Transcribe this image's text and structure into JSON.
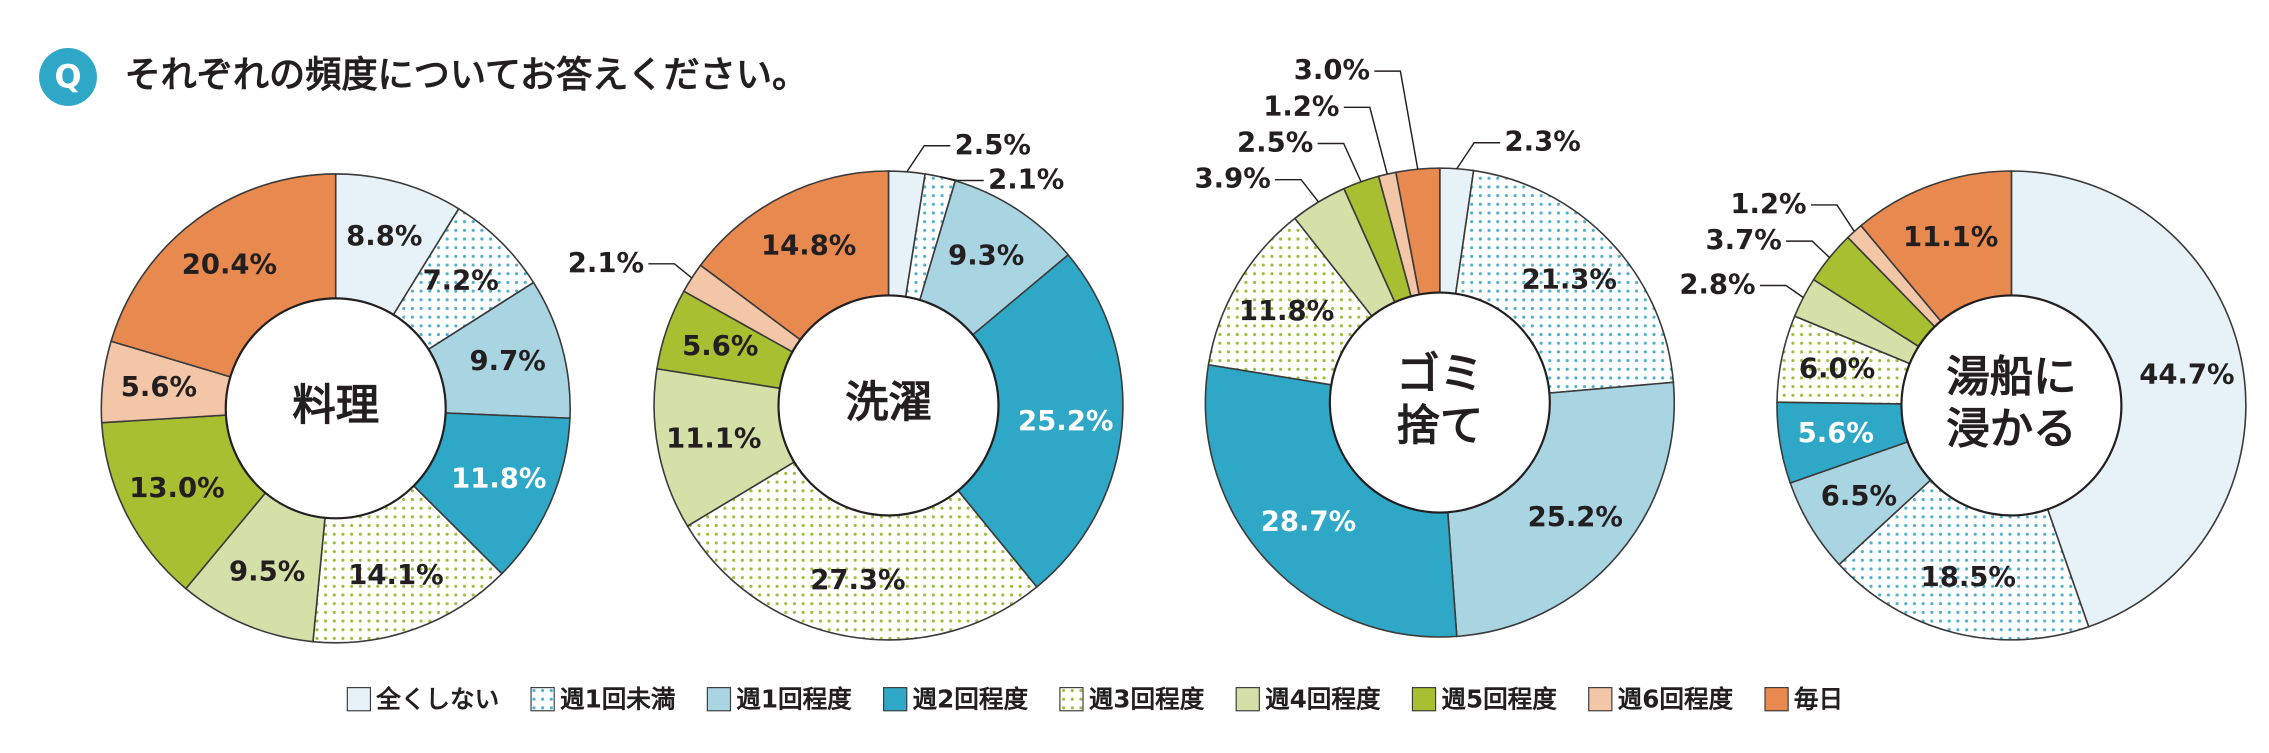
{
  "chart_data": {
    "type": "pie",
    "badge": "Q",
    "title": "それぞれの頻度についてお答えください。",
    "categories": [
      "全くしない",
      "週1回未満",
      "週1回程度",
      "週2回程度",
      "週3回程度",
      "週4回程度",
      "週5回程度",
      "週6回程度",
      "毎日"
    ],
    "colors": [
      "#e6f2f7",
      "#4fb0cc",
      "#a9d4e2",
      "#2fa8c7",
      "#9fbd3a",
      "#d5e0a8",
      "#a8bf32",
      "#f4c6a8",
      "#e8894f"
    ],
    "dotted": [
      false,
      true,
      false,
      false,
      true,
      false,
      false,
      false,
      false
    ],
    "series": [
      {
        "name": "料理",
        "values": [
          8.8,
          7.2,
          9.7,
          11.8,
          14.1,
          9.5,
          13.0,
          5.6,
          20.4
        ],
        "value_labels": [
          "8.8%",
          "7.2%",
          "9.7%",
          "11.8%",
          "14.1%",
          "9.5%",
          "13.0%",
          "5.6%",
          "20.4%"
        ]
      },
      {
        "name": "洗濯",
        "values": [
          2.5,
          2.1,
          9.3,
          25.2,
          27.3,
          11.1,
          5.6,
          2.1,
          14.8
        ],
        "value_labels": [
          "2.5%",
          "2.1%",
          "9.3%",
          "25.2%",
          "27.3%",
          "11.1%",
          "5.6%",
          "2.1%",
          "14.8%"
        ]
      },
      {
        "name": "ゴミ捨て",
        "values": [
          2.3,
          21.3,
          25.2,
          28.7,
          11.8,
          3.9,
          2.5,
          1.2,
          3.0
        ],
        "value_labels": [
          "2.3%",
          "21.3%",
          "25.2%",
          "28.7%",
          "11.8%",
          "3.9%",
          "2.5%",
          "1.2%",
          "3.0%"
        ]
      },
      {
        "name": "湯船に浸かる",
        "values": [
          44.7,
          18.5,
          6.5,
          5.6,
          6.0,
          2.8,
          3.7,
          1.2,
          11.1
        ],
        "value_labels": [
          "44.7%",
          "18.5%",
          "6.5%",
          "5.6%",
          "6.0%",
          "2.8%",
          "3.7%",
          "1.2%",
          "11.1%"
        ]
      }
    ]
  }
}
